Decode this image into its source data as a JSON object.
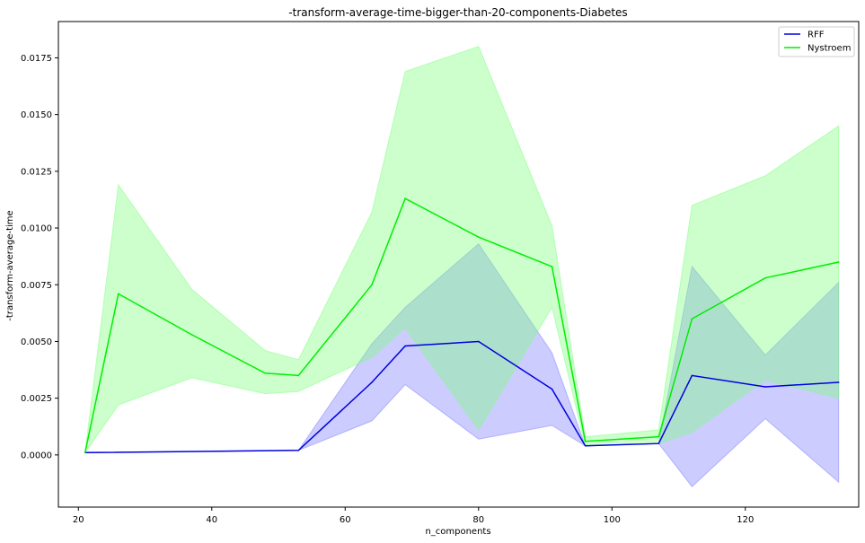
{
  "chart_data": {
    "type": "line",
    "title": "-transform-average-time-bigger-than-20-components-Diabetes",
    "xlabel": "n_components",
    "ylabel": "-transform-average-time",
    "xlim": [
      17,
      137
    ],
    "ylim": [
      -0.0023,
      0.0191
    ],
    "xticks": [
      20,
      40,
      60,
      80,
      100,
      120
    ],
    "xtick_labels": [
      "20",
      "40",
      "60",
      "80",
      "100",
      "120"
    ],
    "yticks": [
      0.0,
      0.0025,
      0.005,
      0.0075,
      0.01,
      0.0125,
      0.015,
      0.0175
    ],
    "ytick_labels": [
      "0.0000",
      "0.0025",
      "0.0050",
      "0.0075",
      "0.0100",
      "0.0125",
      "0.0150",
      "0.0175"
    ],
    "grid": false,
    "legend_position": "top-right",
    "series": [
      {
        "name": "RFF",
        "color": "#0000dd",
        "band_color": "#8080ff",
        "points": [
          {
            "x": 21,
            "y": 0.0001,
            "lo": 0.0001,
            "hi": 0.0001
          },
          {
            "x": 53,
            "y": 0.0002,
            "lo": 0.0002,
            "hi": 0.0002
          },
          {
            "x": 64,
            "y": 0.0032,
            "lo": 0.0015,
            "hi": 0.0049
          },
          {
            "x": 69,
            "y": 0.0048,
            "lo": 0.0031,
            "hi": 0.0065
          },
          {
            "x": 80,
            "y": 0.005,
            "lo": 0.0007,
            "hi": 0.0093
          },
          {
            "x": 91,
            "y": 0.0029,
            "lo": 0.0013,
            "hi": 0.0045
          },
          {
            "x": 96,
            "y": 0.0004,
            "lo": 0.0004,
            "hi": 0.0004
          },
          {
            "x": 107,
            "y": 0.0005,
            "lo": 0.0005,
            "hi": 0.0005
          },
          {
            "x": 112,
            "y": 0.0035,
            "lo": -0.0014,
            "hi": 0.0083
          },
          {
            "x": 123,
            "y": 0.003,
            "lo": 0.0016,
            "hi": 0.0044
          },
          {
            "x": 134,
            "y": 0.0032,
            "lo": -0.0012,
            "hi": 0.0076
          }
        ]
      },
      {
        "name": "Nystroem",
        "color": "#00ee00",
        "band_color": "#80ff80",
        "points": [
          {
            "x": 21,
            "y": 0.0001,
            "lo": 0.0001,
            "hi": 0.0001
          },
          {
            "x": 26,
            "y": 0.0071,
            "lo": 0.0022,
            "hi": 0.0119
          },
          {
            "x": 37,
            "y": 0.0053,
            "lo": 0.0034,
            "hi": 0.0073
          },
          {
            "x": 48,
            "y": 0.0036,
            "lo": 0.0027,
            "hi": 0.0046
          },
          {
            "x": 53,
            "y": 0.0035,
            "lo": 0.0028,
            "hi": 0.0042
          },
          {
            "x": 64,
            "y": 0.0075,
            "lo": 0.0043,
            "hi": 0.0107
          },
          {
            "x": 69,
            "y": 0.0113,
            "lo": 0.0056,
            "hi": 0.0169
          },
          {
            "x": 80,
            "y": 0.0096,
            "lo": 0.0011,
            "hi": 0.018
          },
          {
            "x": 91,
            "y": 0.0083,
            "lo": 0.0065,
            "hi": 0.0101
          },
          {
            "x": 96,
            "y": 0.0006,
            "lo": 0.0004,
            "hi": 0.0008
          },
          {
            "x": 107,
            "y": 0.0008,
            "lo": 0.0005,
            "hi": 0.0011
          },
          {
            "x": 112,
            "y": 0.006,
            "lo": 0.001,
            "hi": 0.011
          },
          {
            "x": 123,
            "y": 0.0078,
            "lo": 0.0033,
            "hi": 0.0123
          },
          {
            "x": 134,
            "y": 0.0085,
            "lo": 0.0025,
            "hi": 0.0145
          }
        ]
      }
    ]
  }
}
